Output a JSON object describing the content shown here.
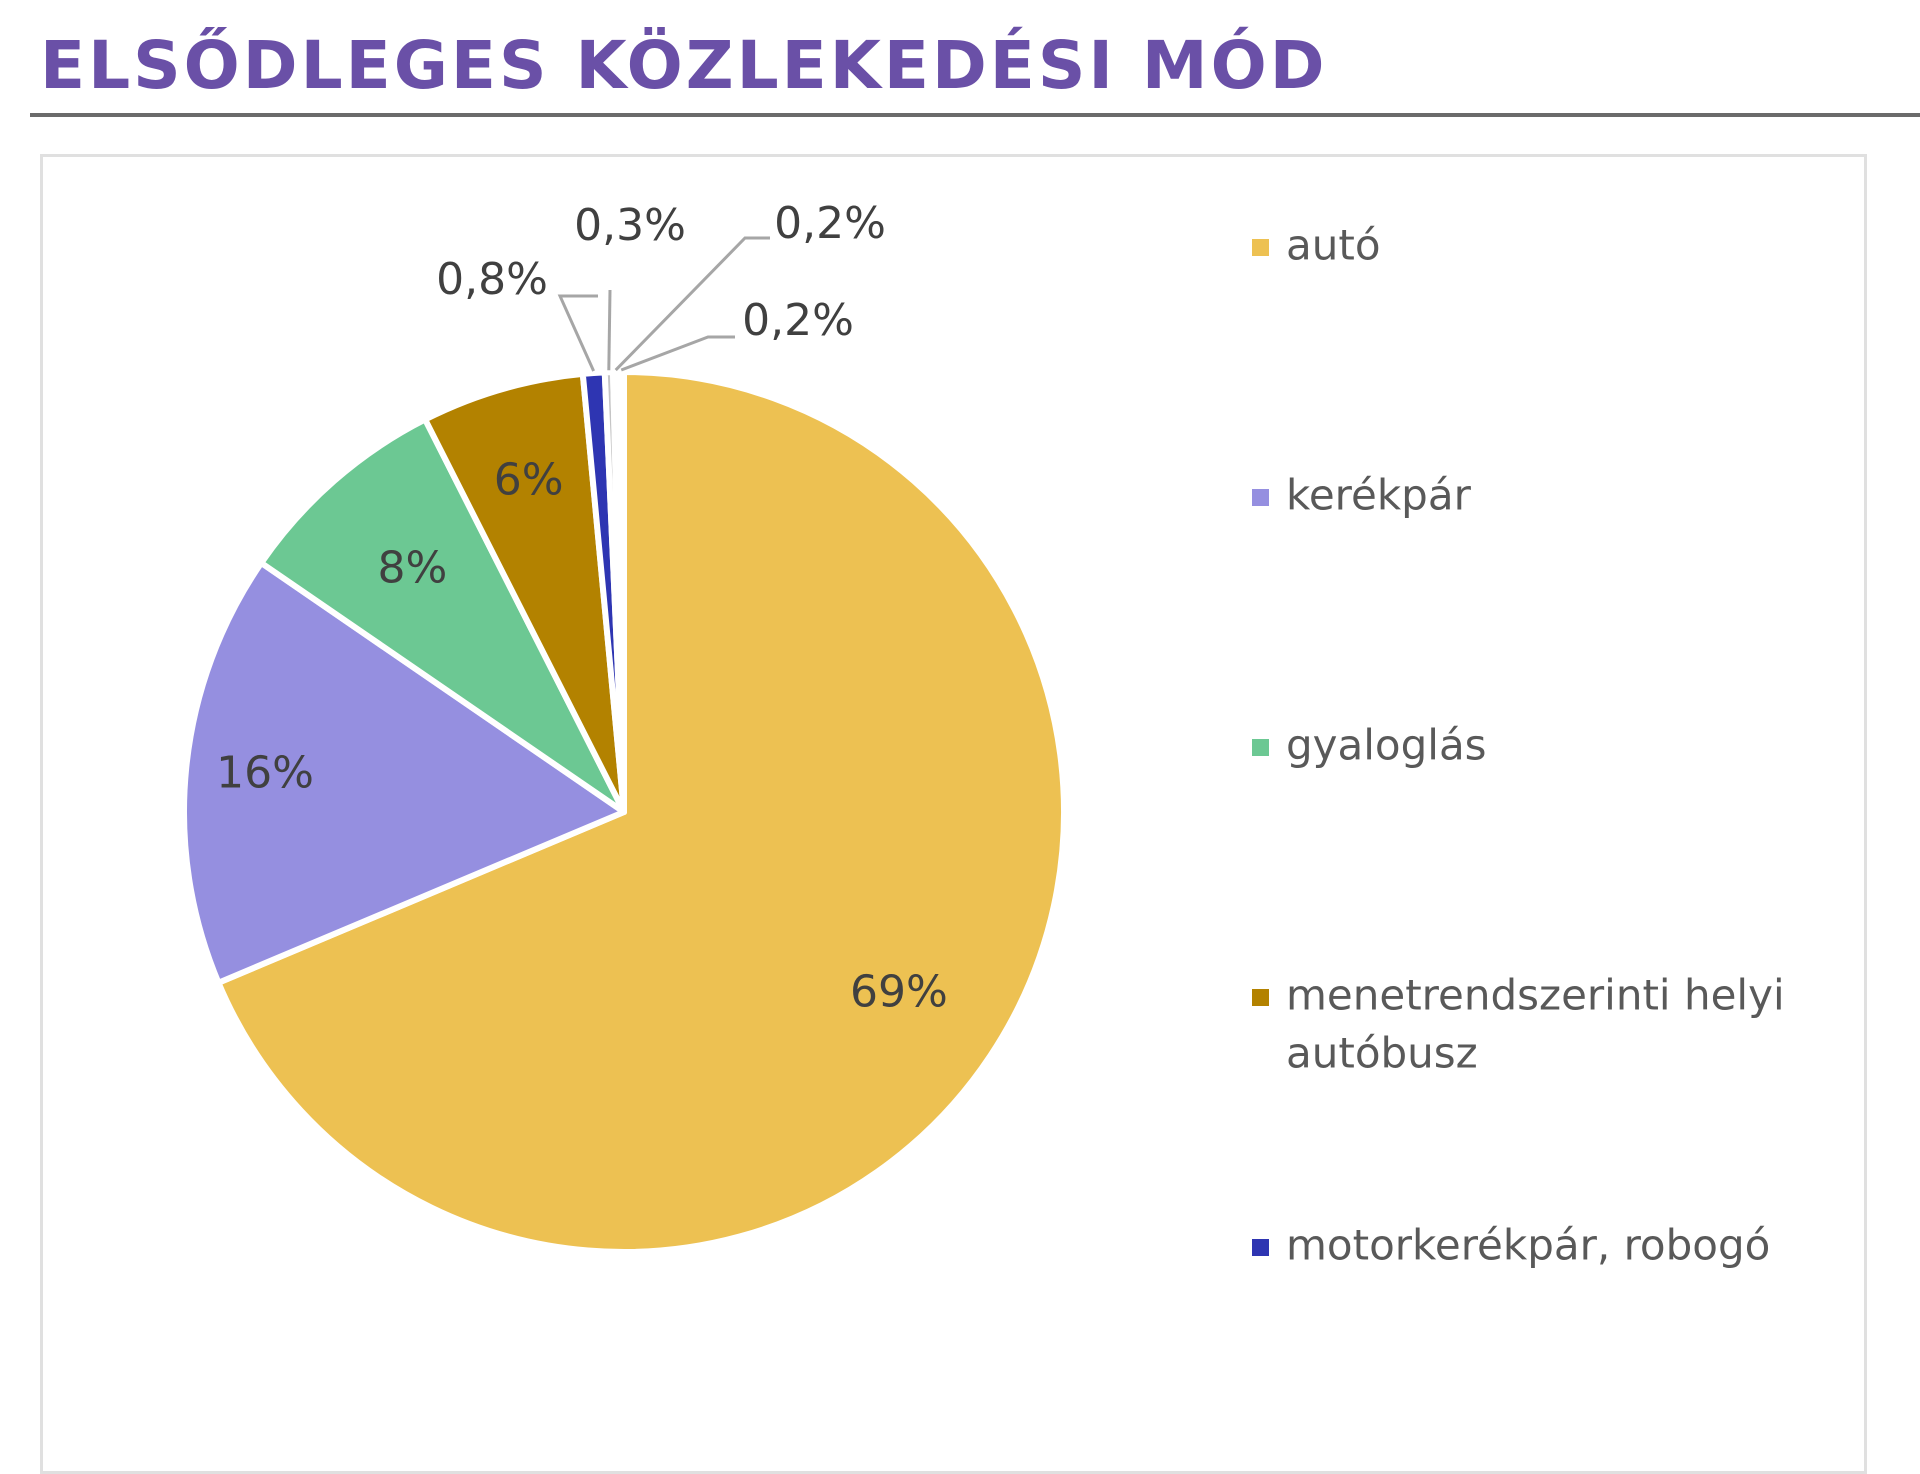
{
  "page": {
    "title": "ELSŐDLEGES KÖZLEKEDÉSI MÓD",
    "title_color": "#6a50a7"
  },
  "chart_data": {
    "type": "pie",
    "title": "ELSŐDLEGES KÖZLEKEDÉSI MÓD",
    "start_angle_deg": 0,
    "direction": "clockwise",
    "legend_position": "right",
    "slices": [
      {
        "name": "autó",
        "value": 69,
        "label": "69%",
        "color": "#edc152"
      },
      {
        "name": "kerékpár",
        "value": 16,
        "label": "16%",
        "color": "#958fe0"
      },
      {
        "name": "gyaloglás",
        "value": 8,
        "label": "8%",
        "color": "#6cc893"
      },
      {
        "name": "menetrendszerinti helyi autóbusz",
        "value": 6,
        "label": "6%",
        "color": "#b38200"
      },
      {
        "name": "motorkerékpár, robogó",
        "value": 0.8,
        "label": "0,8%",
        "color": "#2e35b2"
      },
      {
        "name": "",
        "value": 0.3,
        "label": "0,3%",
        "color": "#c5c5c5"
      },
      {
        "name": "",
        "value": 0.2,
        "label": "0,2%",
        "color": "#c5c5c5"
      },
      {
        "name": "",
        "value": 0.2,
        "label": "0,2%",
        "color": "#c5c5c5"
      }
    ],
    "legend": [
      {
        "label_lines": [
          "autó"
        ],
        "color": "#edc152"
      },
      {
        "label_lines": [
          "kerékpár"
        ],
        "color": "#958fe0"
      },
      {
        "label_lines": [
          "gyaloglás"
        ],
        "color": "#6cc893"
      },
      {
        "label_lines": [
          "menetrendszerinti helyi",
          "autóbusz"
        ],
        "color": "#b38200"
      },
      {
        "label_lines": [
          "motorkerékpár, robogó"
        ],
        "color": "#2e35b2"
      }
    ]
  }
}
